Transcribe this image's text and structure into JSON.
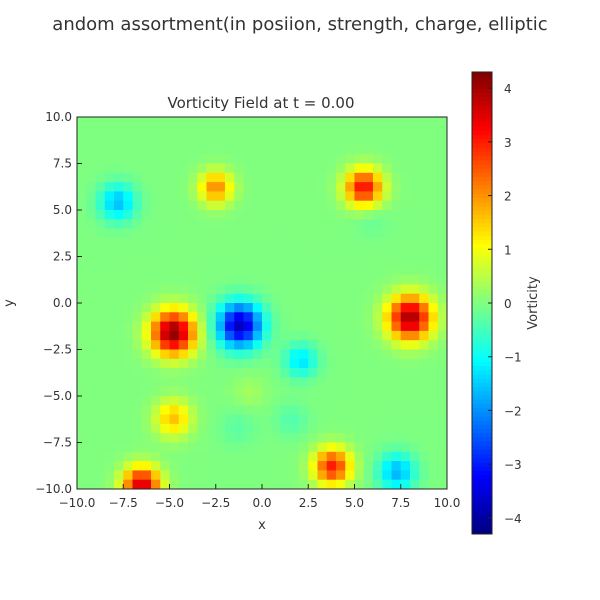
{
  "suptitle": "andom assortment(in posiion, strength, charge, elliptic",
  "chart_data": {
    "type": "heatmap",
    "title": "Vorticity Field at t = 0.00",
    "xlabel": "x",
    "ylabel": "y",
    "xlim": [
      -10.0,
      10.0
    ],
    "ylim": [
      -10.0,
      10.0
    ],
    "x_ticks": [
      -10.0,
      -7.5,
      -5.0,
      -2.5,
      0.0,
      2.5,
      5.0,
      7.5,
      10.0
    ],
    "x_tick_labels": [
      "−10.0",
      "−7.5",
      "−5.0",
      "−2.5",
      "0.0",
      "2.5",
      "5.0",
      "7.5",
      "10.0"
    ],
    "y_ticks": [
      10.0,
      7.5,
      5.0,
      2.5,
      0.0,
      -2.5,
      -5.0,
      -7.5,
      -10.0
    ],
    "y_tick_labels": [
      "10.0",
      "7.5",
      "5.0",
      "2.5",
      "0.0",
      "−2.5",
      "−5.0",
      "−7.5",
      "−10.0"
    ],
    "colorbar": {
      "label": "Vorticity",
      "range": [
        -4.3,
        4.3
      ],
      "colormap": "jet",
      "ticks": [
        4,
        3,
        2,
        1,
        0,
        -1,
        -2,
        -3,
        -4
      ],
      "tick_labels": [
        "4",
        "3",
        "2",
        "1",
        "0",
        "−1",
        "−2",
        "−3",
        "−4"
      ]
    },
    "background_value": 0,
    "vortices": [
      {
        "x": -7.8,
        "y": 5.4,
        "strength": -1.6,
        "radius": 1.0
      },
      {
        "x": -2.5,
        "y": 6.2,
        "strength": 2.1,
        "radius": 0.9
      },
      {
        "x": 5.5,
        "y": 6.2,
        "strength": 3.2,
        "radius": 1.0
      },
      {
        "x": 5.9,
        "y": 4.5,
        "strength": -0.25,
        "radius": 0.9
      },
      {
        "x": 8.0,
        "y": -0.8,
        "strength": 4.0,
        "radius": 1.2
      },
      {
        "x": -4.8,
        "y": -1.6,
        "strength": 4.2,
        "radius": 1.2
      },
      {
        "x": -1.2,
        "y": -1.2,
        "strength": -3.8,
        "radius": 1.2
      },
      {
        "x": 2.1,
        "y": -3.1,
        "strength": -1.3,
        "radius": 0.9
      },
      {
        "x": -0.7,
        "y": -4.8,
        "strength": 0.3,
        "radius": 0.9
      },
      {
        "x": -4.8,
        "y": -6.2,
        "strength": 1.6,
        "radius": 1.0
      },
      {
        "x": -1.3,
        "y": -6.7,
        "strength": -0.3,
        "radius": 1.0
      },
      {
        "x": 1.6,
        "y": -6.3,
        "strength": -0.4,
        "radius": 0.9
      },
      {
        "x": 3.8,
        "y": -8.8,
        "strength": 3.0,
        "radius": 1.0
      },
      {
        "x": 7.3,
        "y": -9.1,
        "strength": -1.7,
        "radius": 1.0
      },
      {
        "x": -6.5,
        "y": -9.8,
        "strength": 3.6,
        "radius": 1.0
      }
    ]
  }
}
